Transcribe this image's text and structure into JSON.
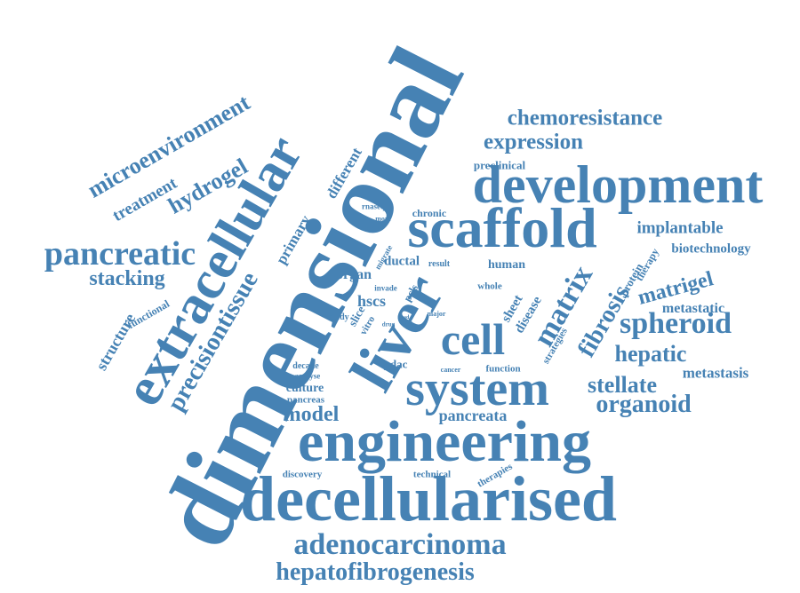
{
  "words": {
    "dimensional": "dimensional",
    "engineering": "engineering",
    "decellularised": "decellularised",
    "development": "development",
    "scaffold": "scaffold",
    "system": "system",
    "extracellular": "extracellular",
    "liver": "liver",
    "cell": "cell",
    "adenocarcinoma": "adenocarcinoma",
    "hepatofibrogenesis": "hepatofibrogenesis",
    "pancreatic": "pancreatic",
    "microenvironment": "microenvironment",
    "hydrogel": "hydrogel",
    "treatment": "treatment",
    "chemoresistance": "chemoresistance",
    "expression": "expression",
    "preclinical": "preclinical",
    "stacking": "stacking",
    "precisiontissue": "precisiontissue",
    "primary": "primary",
    "different": "different",
    "structure": "structure",
    "functional": "functional",
    "implantable": "implantable",
    "biotechnology": "biotechnology",
    "therapy": "therapy",
    "protein": "protein",
    "matrigel": "matrigel",
    "metastatic": "metastatic",
    "spheroid": "spheroid",
    "hepatic": "hepatic",
    "metastasis": "metastasis",
    "stellate": "stellate",
    "organoid": "organoid",
    "matrix": "matrix",
    "fibrosis": "fibrosis",
    "sheet": "sheet",
    "disease": "disease",
    "strategies": "strategies",
    "human": "human",
    "whole": "whole",
    "result": "result",
    "chronic": "chronic",
    "ductal": "ductal",
    "migrate": "migrate",
    "organ": "organ",
    "invade": "invade",
    "pcls": "pcls",
    "rnaseq": "rnaseq",
    "more": "more",
    "able": "able",
    "hscs": "hscs",
    "slice": "slice",
    "vitro": "vitro",
    "study": "study",
    "drug": "drug",
    "lead": "lead",
    "year": "year",
    "major": "major",
    "pdac": "pdac",
    "decade": "decade",
    "analyse": "analyse",
    "culture": "culture",
    "pancreas": "pancreas",
    "model": "model",
    "cancer": "cancer",
    "function": "function",
    "pancreata": "pancreata",
    "discovery": "discovery",
    "technical": "technical",
    "therapies": "therapies"
  },
  "colors": {
    "word": "#4682b4",
    "background": "#ffffff"
  }
}
